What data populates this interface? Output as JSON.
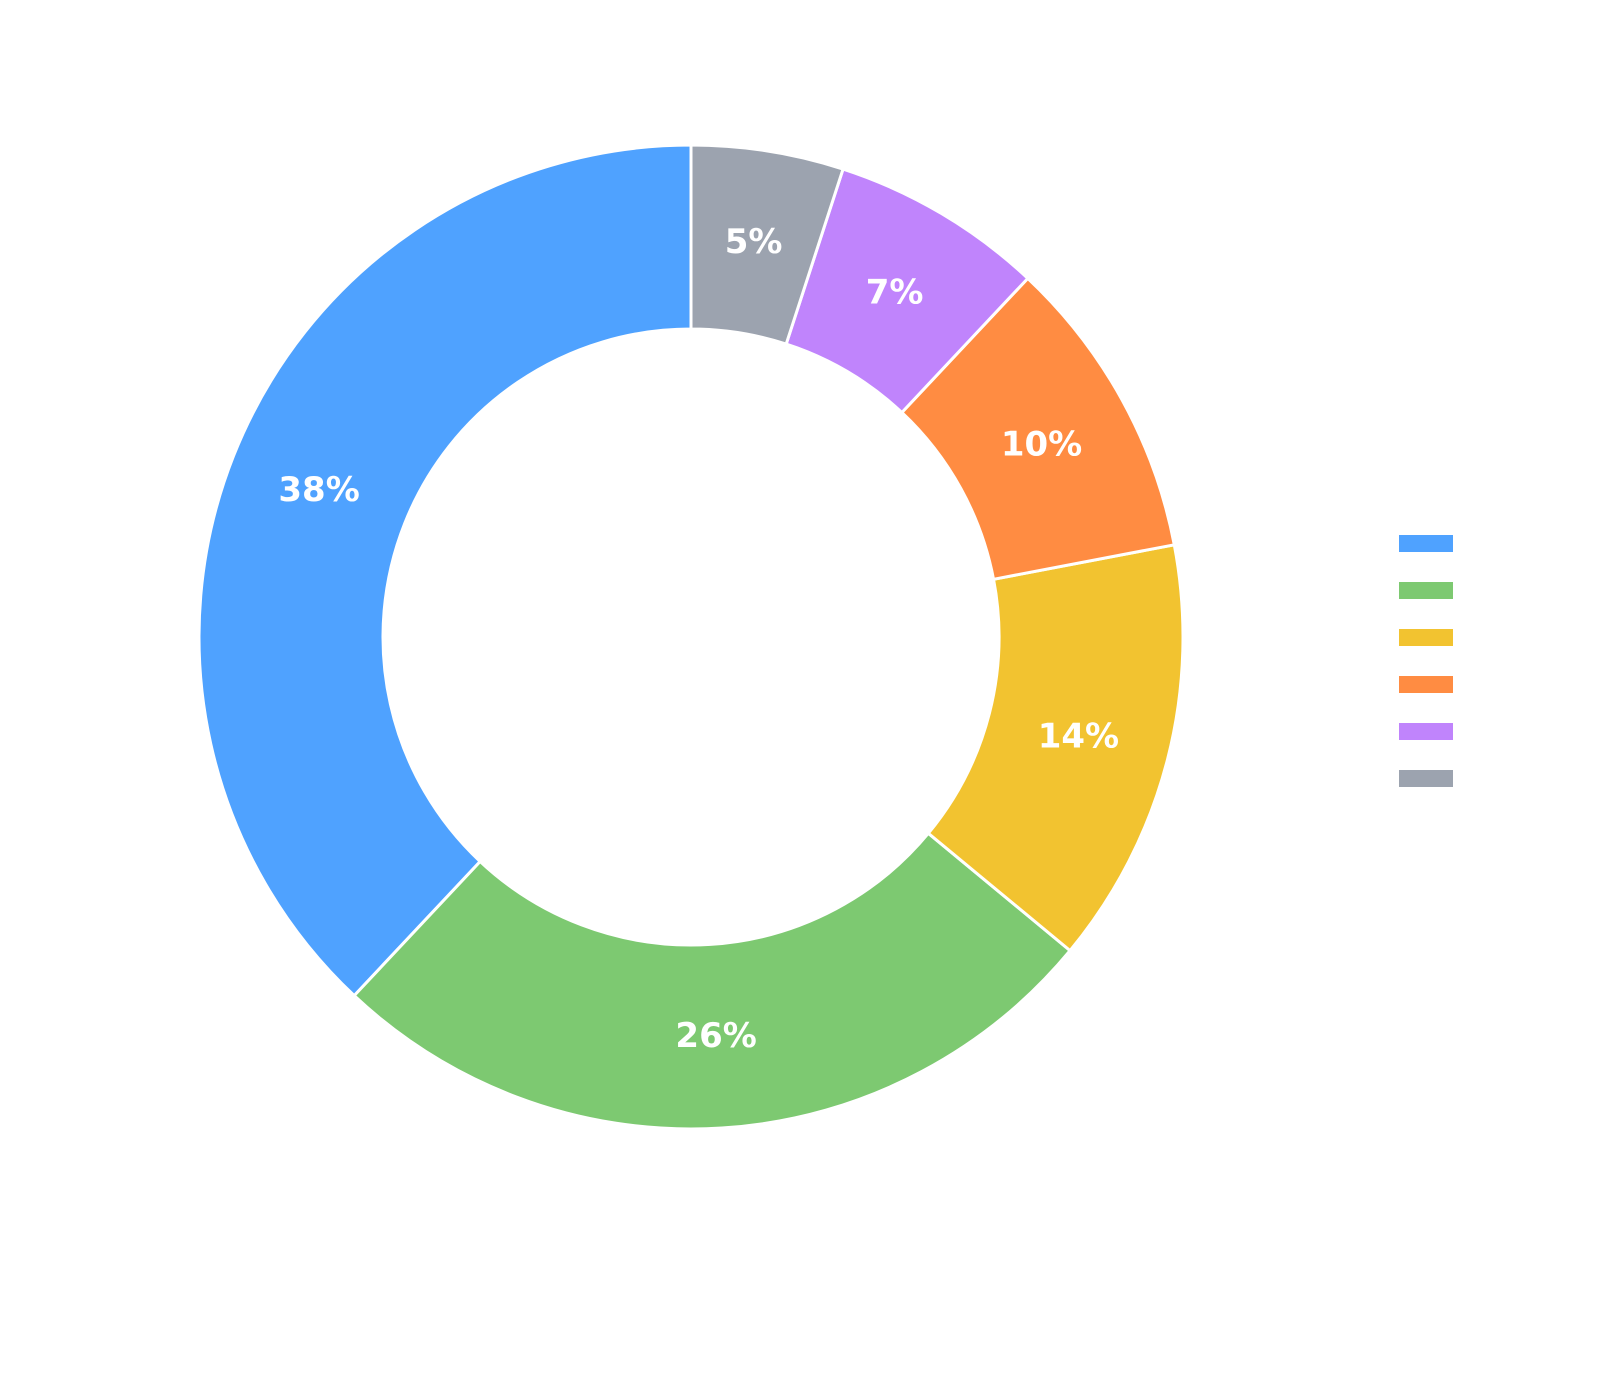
{
  "chart_data": {
    "type": "pie",
    "subtype": "donut",
    "legend_position": "right",
    "slices": [
      {
        "label": "38%",
        "value": 38,
        "color": "#4fa2ff"
      },
      {
        "label": "26%",
        "value": 26,
        "color": "#7dc971"
      },
      {
        "label": "14%",
        "value": 14,
        "color": "#f2c330"
      },
      {
        "label": "10%",
        "value": 10,
        "color": "#ff8c42"
      },
      {
        "label": "7%",
        "value": 7,
        "color": "#c084fc"
      },
      {
        "label": "5%",
        "value": 5,
        "color": "#9ca3af"
      }
    ]
  }
}
